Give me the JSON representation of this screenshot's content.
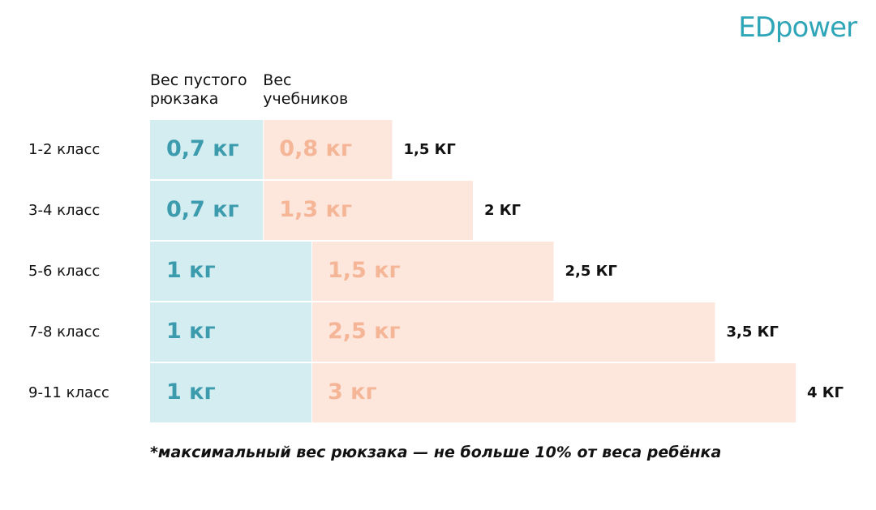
{
  "brand": "EDpower",
  "chart_data": {
    "type": "bar",
    "orientation": "horizontal",
    "stacked": true,
    "categories": [
      "1-2 класс",
      "3-4 класс",
      "5-6 класс",
      "7-8 класс",
      "9-11 класс"
    ],
    "series": [
      {
        "name": "Вес пустого рюкзака",
        "color": "#d3edf1",
        "label_color": "#3c9cad",
        "values": [
          0.7,
          0.7,
          1,
          1,
          1
        ],
        "value_labels": [
          "0,7 кг",
          "0,7 кг",
          "1 кг",
          "1 кг",
          "1 кг"
        ]
      },
      {
        "name": "Вес учебников",
        "color": "#fde6dc",
        "label_color": "#f5b597",
        "values": [
          0.8,
          1.3,
          1.5,
          2.5,
          3
        ],
        "value_labels": [
          "0,8 кг",
          "1,3 кг",
          "1,5 кг",
          "2,5 кг",
          "3 кг"
        ]
      }
    ],
    "total_labels": [
      "1,5 КГ",
      "2 КГ",
      "2,5 КГ",
      "3,5 КГ",
      "4 КГ"
    ],
    "footnote": "*максимальный вес рюкзака — не больше 10% от веса ребёнка"
  }
}
